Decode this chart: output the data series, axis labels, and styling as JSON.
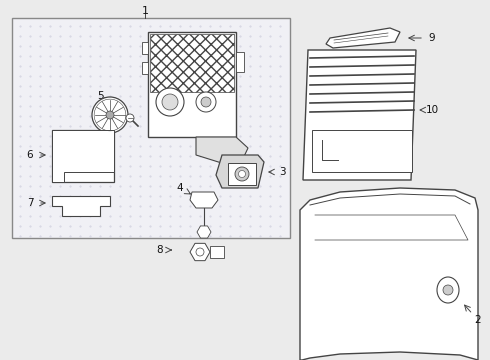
{
  "bg_color": "#ebebeb",
  "line_color": "#444444",
  "label_color": "#111111",
  "fig_width": 4.9,
  "fig_height": 3.6,
  "dpi": 100
}
